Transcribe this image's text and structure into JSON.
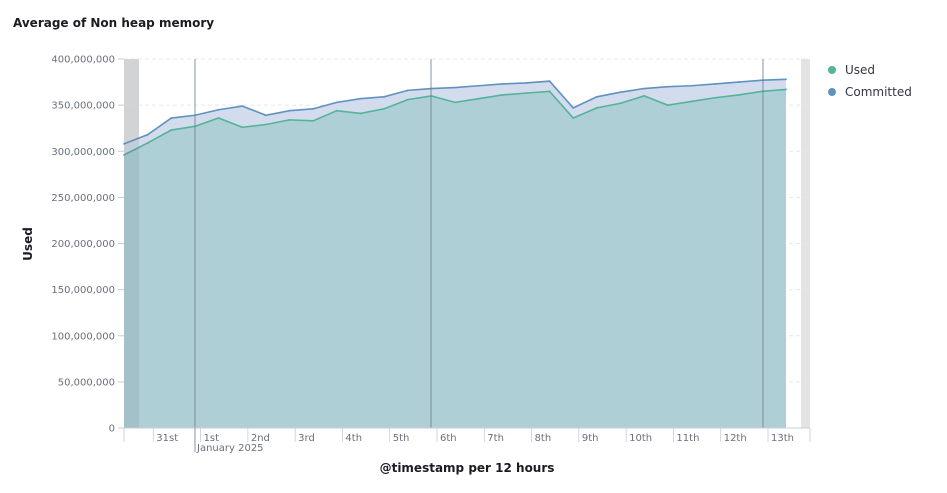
{
  "chart_data": {
    "type": "area",
    "title": "Average of Non heap memory",
    "xlabel": "@timestamp per 12 hours",
    "ylabel": "Used",
    "ylim": [
      0,
      400000000
    ],
    "yticks": [
      0,
      50000000,
      100000000,
      150000000,
      200000000,
      250000000,
      300000000,
      350000000,
      400000000
    ],
    "ytick_labels": [
      "0",
      "50,000,000",
      "100,000,000",
      "150,000,000",
      "200,000,000",
      "250,000,000",
      "300,000,000",
      "350,000,000",
      "400,000,000"
    ],
    "xticks": [
      {
        "label": "31st",
        "t": 2
      },
      {
        "label": "1st",
        "t": 4
      },
      {
        "label": "2nd",
        "t": 6
      },
      {
        "label": "3rd",
        "t": 8
      },
      {
        "label": "4th",
        "t": 10
      },
      {
        "label": "5th",
        "t": 12
      },
      {
        "label": "6th",
        "t": 14
      },
      {
        "label": "7th",
        "t": 16
      },
      {
        "label": "8th",
        "t": 18
      },
      {
        "label": "9th",
        "t": 20
      },
      {
        "label": "10th",
        "t": 22
      },
      {
        "label": "11th",
        "t": 24
      },
      {
        "label": "12th",
        "t": 26
      },
      {
        "label": "13th",
        "t": 28
      }
    ],
    "x_sub_label": "January 2025",
    "grid": true,
    "legend_position": "right",
    "series": [
      {
        "name": "Used",
        "color": "#54b399",
        "values": [
          296000000,
          309000000,
          323000000,
          327000000,
          336000000,
          326000000,
          329000000,
          334000000,
          333000000,
          344000000,
          341000000,
          346000000,
          356000000,
          360000000,
          353000000,
          357000000,
          361000000,
          363000000,
          365000000,
          336000000,
          347000000,
          352000000,
          360000000,
          350000000,
          354000000,
          358000000,
          361000000,
          365000000,
          367000000
        ]
      },
      {
        "name": "Committed",
        "color": "#6092c0",
        "values": [
          308000000,
          318000000,
          336000000,
          339000000,
          345000000,
          349000000,
          339000000,
          344000000,
          346000000,
          353000000,
          357000000,
          359000000,
          366000000,
          368000000,
          369000000,
          371000000,
          373000000,
          374000000,
          376000000,
          347000000,
          359000000,
          364000000,
          368000000,
          370000000,
          371000000,
          373000000,
          375000000,
          377000000,
          378000000
        ]
      }
    ],
    "colors": {
      "used_fill": "#aecfd6",
      "committed_fill": "#d2dcec",
      "grid": "#e6e8ee",
      "marker_line": "#6a7b87",
      "partial_bucket": "#e3e3e3"
    }
  }
}
